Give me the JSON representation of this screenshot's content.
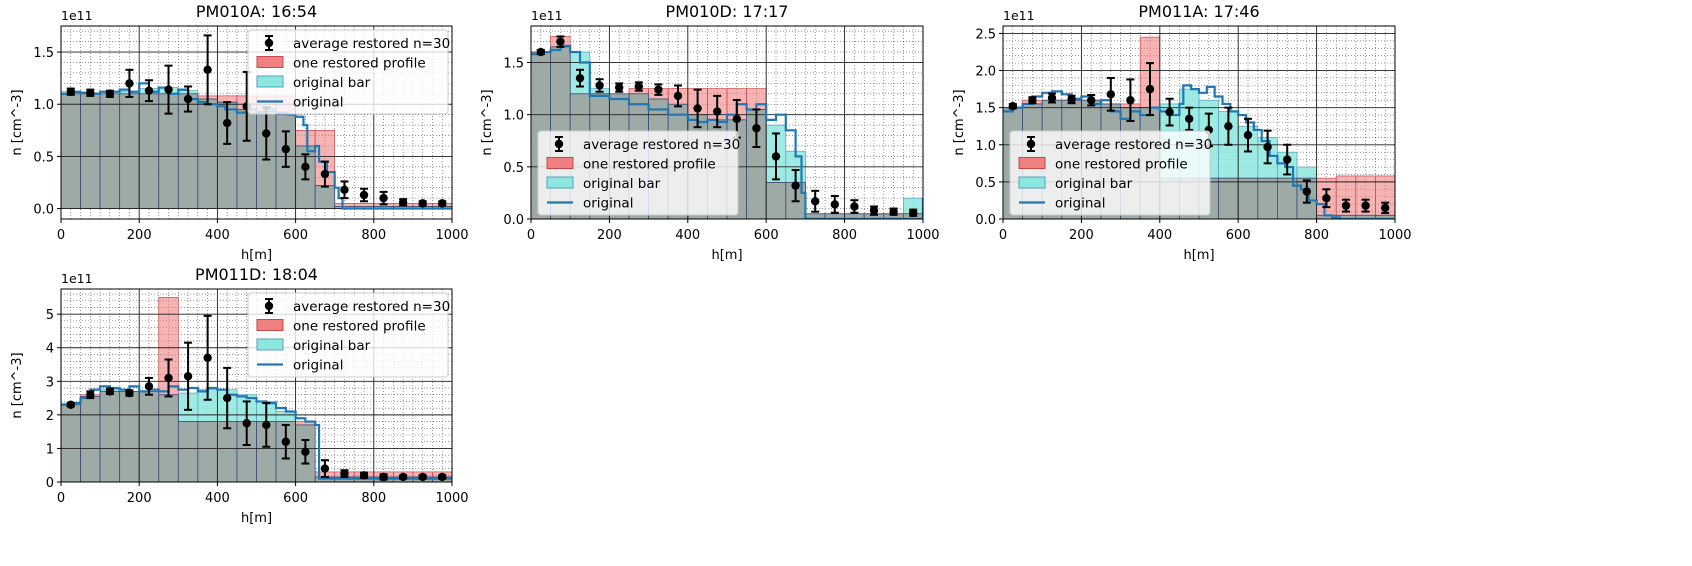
{
  "colors": {
    "restored": "#f08080",
    "restored_edge": "#c74848",
    "original_bar": "#8ce8de",
    "original_bar_edge": "#5a9fbf",
    "original_line": "#1f77b4",
    "overlap": "#9aaaa4",
    "average": "#000000"
  },
  "chart_data": [
    {
      "type": "bar",
      "title": "PM010A: 16:54",
      "xlabel": "h[m]",
      "ylabel": "n [cm^-3]",
      "sci_label": "1e11",
      "xlim": [
        0,
        1000
      ],
      "ylim": [
        -0.1,
        1.75
      ],
      "yticks": [
        "0.0",
        "0.5",
        "1.0",
        "1.5"
      ],
      "ytick_values": [
        0,
        0.5,
        1.0,
        1.5
      ],
      "xticks": [
        "0",
        "200",
        "400",
        "600",
        "800",
        "1000"
      ],
      "legend": [
        "average restored n=30",
        "one restored profile",
        "original bar",
        "original"
      ],
      "legend_position": "top-right",
      "bar_width": 50,
      "original_bar": [
        1.12,
        1.11,
        1.1,
        1.12,
        1.15,
        1.16,
        1.13,
        1.05,
        1.02,
        0.95,
        0.93,
        0.9,
        0.6,
        0.22,
        0.02,
        0.02,
        0.02,
        0.02,
        0.02,
        0.02
      ],
      "restored": [
        1.1,
        1.1,
        1.1,
        1.1,
        1.1,
        1.1,
        1.1,
        1.08,
        1.08,
        1.08,
        1.08,
        1.08,
        0.75,
        0.75,
        0.05,
        0.05,
        0.05,
        0.05,
        0.05,
        0.05
      ],
      "average_restored": {
        "x": [
          25,
          75,
          125,
          175,
          225,
          275,
          325,
          375,
          425,
          475,
          525,
          575,
          625,
          675,
          725,
          775,
          825,
          875,
          925,
          975
        ],
        "y": [
          1.12,
          1.11,
          1.1,
          1.2,
          1.13,
          1.14,
          1.05,
          1.33,
          0.82,
          0.98,
          0.72,
          0.57,
          0.4,
          0.33,
          0.18,
          0.13,
          0.1,
          0.06,
          0.05,
          0.05
        ],
        "err": [
          0.03,
          0.03,
          0.03,
          0.13,
          0.1,
          0.23,
          0.12,
          0.33,
          0.2,
          0.33,
          0.25,
          0.17,
          0.12,
          0.12,
          0.08,
          0.06,
          0.06,
          0.03,
          0.02,
          0.02
        ]
      },
      "original": {
        "x": [
          0,
          20,
          50,
          80,
          100,
          150,
          175,
          200,
          225,
          250,
          275,
          300,
          325,
          350,
          375,
          400,
          420,
          450,
          480,
          500,
          520,
          550,
          580,
          600,
          620,
          630,
          650,
          660,
          680,
          700,
          710,
          720,
          750,
          800,
          900,
          1000
        ],
        "y": [
          1.1,
          1.12,
          1.11,
          1.1,
          1.12,
          1.14,
          1.12,
          1.2,
          1.12,
          1.16,
          1.1,
          1.14,
          1.05,
          1.02,
          1.0,
          0.98,
          0.95,
          0.92,
          0.95,
          0.92,
          0.95,
          0.92,
          0.9,
          0.88,
          0.8,
          0.55,
          0.6,
          0.45,
          0.35,
          0.2,
          0.1,
          0.0,
          0.0,
          0.0,
          0.0,
          0.0
        ]
      }
    },
    {
      "type": "bar",
      "title": "PM010D: 17:17",
      "xlabel": "h[m]",
      "ylabel": "n [cm^-3]",
      "sci_label": "1e11",
      "xlim": [
        0,
        1000
      ],
      "ylim": [
        0,
        1.85
      ],
      "yticks": [
        "0.0",
        "0.5",
        "1.0",
        "1.5"
      ],
      "ytick_values": [
        0,
        0.5,
        1.0,
        1.5
      ],
      "xticks": [
        "0",
        "200",
        "400",
        "600",
        "800",
        "1000"
      ],
      "legend": [
        "average restored n=30",
        "one restored profile",
        "original bar",
        "original"
      ],
      "legend_position": "lower-left",
      "bar_width": 50,
      "original_bar": [
        1.6,
        1.65,
        1.6,
        1.25,
        1.2,
        1.2,
        1.15,
        1.1,
        1.0,
        0.95,
        0.95,
        1.05,
        0.9,
        0.65,
        0.05,
        0.05,
        0.05,
        0.05,
        0.05,
        0.2
      ],
      "restored": [
        1.6,
        1.75,
        1.2,
        1.2,
        1.2,
        1.25,
        1.25,
        1.25,
        1.25,
        1.25,
        1.25,
        1.25,
        0.35,
        0.35,
        0.05,
        0.05,
        0.05,
        0.05,
        0.05,
        0.05
      ],
      "average_restored": {
        "x": [
          25,
          75,
          125,
          175,
          225,
          275,
          325,
          375,
          425,
          475,
          525,
          575,
          625,
          675,
          725,
          775,
          825,
          875,
          925,
          975
        ],
        "y": [
          1.6,
          1.7,
          1.35,
          1.28,
          1.26,
          1.27,
          1.24,
          1.18,
          1.06,
          1.03,
          0.96,
          0.87,
          0.6,
          0.32,
          0.17,
          0.14,
          0.12,
          0.08,
          0.07,
          0.06
        ],
        "err": [
          0.02,
          0.05,
          0.08,
          0.06,
          0.04,
          0.04,
          0.05,
          0.1,
          0.18,
          0.15,
          0.18,
          0.18,
          0.22,
          0.15,
          0.1,
          0.08,
          0.06,
          0.04,
          0.03,
          0.03
        ]
      },
      "original": {
        "x": [
          0,
          25,
          50,
          75,
          100,
          125,
          150,
          200,
          250,
          300,
          350,
          400,
          425,
          450,
          475,
          500,
          525,
          550,
          575,
          600,
          625,
          650,
          675,
          690,
          700,
          720,
          800,
          900,
          990,
          1000
        ],
        "y": [
          1.58,
          1.6,
          1.62,
          1.66,
          1.6,
          1.5,
          1.18,
          1.15,
          1.1,
          1.05,
          1.0,
          0.95,
          0.93,
          0.95,
          0.93,
          1.0,
          1.1,
          1.05,
          1.1,
          0.95,
          1.0,
          0.85,
          0.6,
          0.25,
          0.0,
          0.0,
          0.0,
          0.0,
          0.0,
          0.2
        ]
      }
    },
    {
      "type": "bar",
      "title": "PM011A: 17:46",
      "xlabel": "h[m]",
      "ylabel": "n [cm^-3]",
      "sci_label": "1e11",
      "xlim": [
        0,
        1000
      ],
      "ylim": [
        0,
        2.6
      ],
      "yticks": [
        "0.0",
        "0.5",
        "1.0",
        "1.5",
        "2.0",
        "2.5"
      ],
      "ytick_values": [
        0,
        0.5,
        1.0,
        1.5,
        2.0,
        2.5
      ],
      "xticks": [
        "0",
        "200",
        "400",
        "600",
        "800",
        "1000"
      ],
      "legend": [
        "average restored n=30",
        "one restored profile",
        "original bar",
        "original"
      ],
      "legend_position": "lower-left",
      "bar_width": 50,
      "original_bar": [
        1.5,
        1.55,
        1.6,
        1.6,
        1.6,
        1.55,
        1.5,
        1.5,
        1.55,
        1.75,
        1.6,
        1.45,
        1.25,
        1.1,
        0.9,
        0.7,
        0.05,
        0.05,
        0.05,
        0.05
      ],
      "restored": [
        1.5,
        1.6,
        1.6,
        1.6,
        1.6,
        1.55,
        1.55,
        2.45,
        0.55,
        0.55,
        0.55,
        0.55,
        0.55,
        0.55,
        0.55,
        0.55,
        0.55,
        0.58,
        0.58,
        0.58
      ],
      "average_restored": {
        "x": [
          25,
          75,
          125,
          175,
          225,
          275,
          325,
          375,
          425,
          475,
          525,
          575,
          625,
          675,
          725,
          775,
          825,
          875,
          925,
          975
        ],
        "y": [
          1.52,
          1.6,
          1.63,
          1.61,
          1.6,
          1.68,
          1.6,
          1.75,
          1.44,
          1.35,
          1.2,
          1.25,
          1.13,
          0.97,
          0.8,
          0.37,
          0.28,
          0.18,
          0.18,
          0.15
        ],
        "err": [
          0.03,
          0.04,
          0.06,
          0.05,
          0.07,
          0.22,
          0.28,
          0.35,
          0.18,
          0.15,
          0.22,
          0.25,
          0.22,
          0.22,
          0.2,
          0.15,
          0.12,
          0.08,
          0.08,
          0.07
        ]
      },
      "original": {
        "x": [
          0,
          25,
          50,
          75,
          100,
          125,
          150,
          175,
          200,
          225,
          250,
          275,
          300,
          325,
          350,
          375,
          400,
          425,
          450,
          460,
          480,
          500,
          520,
          540,
          560,
          580,
          600,
          620,
          640,
          660,
          680,
          700,
          720,
          740,
          760,
          780,
          800,
          820,
          840,
          860,
          900,
          1000
        ],
        "y": [
          1.45,
          1.5,
          1.55,
          1.65,
          1.7,
          1.72,
          1.68,
          1.62,
          1.65,
          1.55,
          1.6,
          1.45,
          1.35,
          1.45,
          1.4,
          1.5,
          1.45,
          1.4,
          1.55,
          1.8,
          1.75,
          1.7,
          1.78,
          1.65,
          1.55,
          1.45,
          1.4,
          1.3,
          1.2,
          1.05,
          0.85,
          0.75,
          0.7,
          0.45,
          0.4,
          0.25,
          0.2,
          0.05,
          0.02,
          0.0,
          0.0,
          0.0
        ]
      }
    },
    {
      "type": "bar",
      "title": "PM011D: 18:04",
      "xlabel": "h[m]",
      "ylabel": "n [cm^-3]",
      "sci_label": "1e11",
      "xlim": [
        0,
        1000
      ],
      "ylim": [
        0,
        5.75
      ],
      "yticks": [
        "0",
        "1",
        "2",
        "3",
        "4",
        "5"
      ],
      "ytick_values": [
        0,
        1,
        2,
        3,
        4,
        5
      ],
      "xticks": [
        "0",
        "200",
        "400",
        "600",
        "800",
        "1000"
      ],
      "legend": [
        "average restored n=30",
        "one restored profile",
        "original bar",
        "original"
      ],
      "legend_position": "top-right",
      "bar_width": 50,
      "original_bar": [
        2.35,
        2.55,
        2.75,
        2.7,
        2.7,
        2.6,
        2.65,
        2.75,
        2.75,
        2.6,
        2.4,
        2.1,
        1.7,
        0.15,
        0.15,
        0.15,
        0.15,
        0.15,
        0.15,
        0.15
      ],
      "restored": [
        2.3,
        2.6,
        2.7,
        2.7,
        2.7,
        5.5,
        1.8,
        1.8,
        1.8,
        1.8,
        1.8,
        1.8,
        1.8,
        0.3,
        0.3,
        0.3,
        0.3,
        0.3,
        0.3,
        0.3
      ],
      "average_restored": {
        "x": [
          25,
          75,
          125,
          175,
          225,
          275,
          325,
          375,
          425,
          475,
          525,
          575,
          625,
          675,
          725,
          775,
          825,
          875,
          925,
          975
        ],
        "y": [
          2.3,
          2.6,
          2.7,
          2.65,
          2.85,
          3.1,
          3.15,
          3.7,
          2.5,
          1.75,
          1.7,
          1.2,
          0.9,
          0.4,
          0.25,
          0.2,
          0.15,
          0.15,
          0.15,
          0.15
        ],
        "err": [
          0.05,
          0.1,
          0.08,
          0.08,
          0.25,
          0.55,
          1.0,
          1.25,
          0.9,
          0.65,
          0.65,
          0.5,
          0.35,
          0.25,
          0.1,
          0.08,
          0.08,
          0.05,
          0.05,
          0.05
        ]
      },
      "original": {
        "x": [
          0,
          25,
          50,
          75,
          100,
          125,
          150,
          175,
          200,
          225,
          250,
          275,
          300,
          325,
          350,
          375,
          400,
          425,
          450,
          475,
          500,
          525,
          550,
          575,
          600,
          625,
          650,
          660,
          700,
          800,
          900,
          1000
        ],
        "y": [
          2.3,
          2.35,
          2.5,
          2.75,
          2.85,
          2.8,
          2.75,
          2.85,
          2.7,
          2.75,
          2.7,
          2.85,
          2.75,
          2.8,
          2.7,
          2.8,
          2.75,
          2.6,
          2.55,
          2.5,
          2.4,
          2.35,
          2.2,
          2.1,
          1.9,
          1.8,
          1.7,
          0.1,
          0.1,
          0.1,
          0.1,
          0.1
        ]
      }
    }
  ]
}
